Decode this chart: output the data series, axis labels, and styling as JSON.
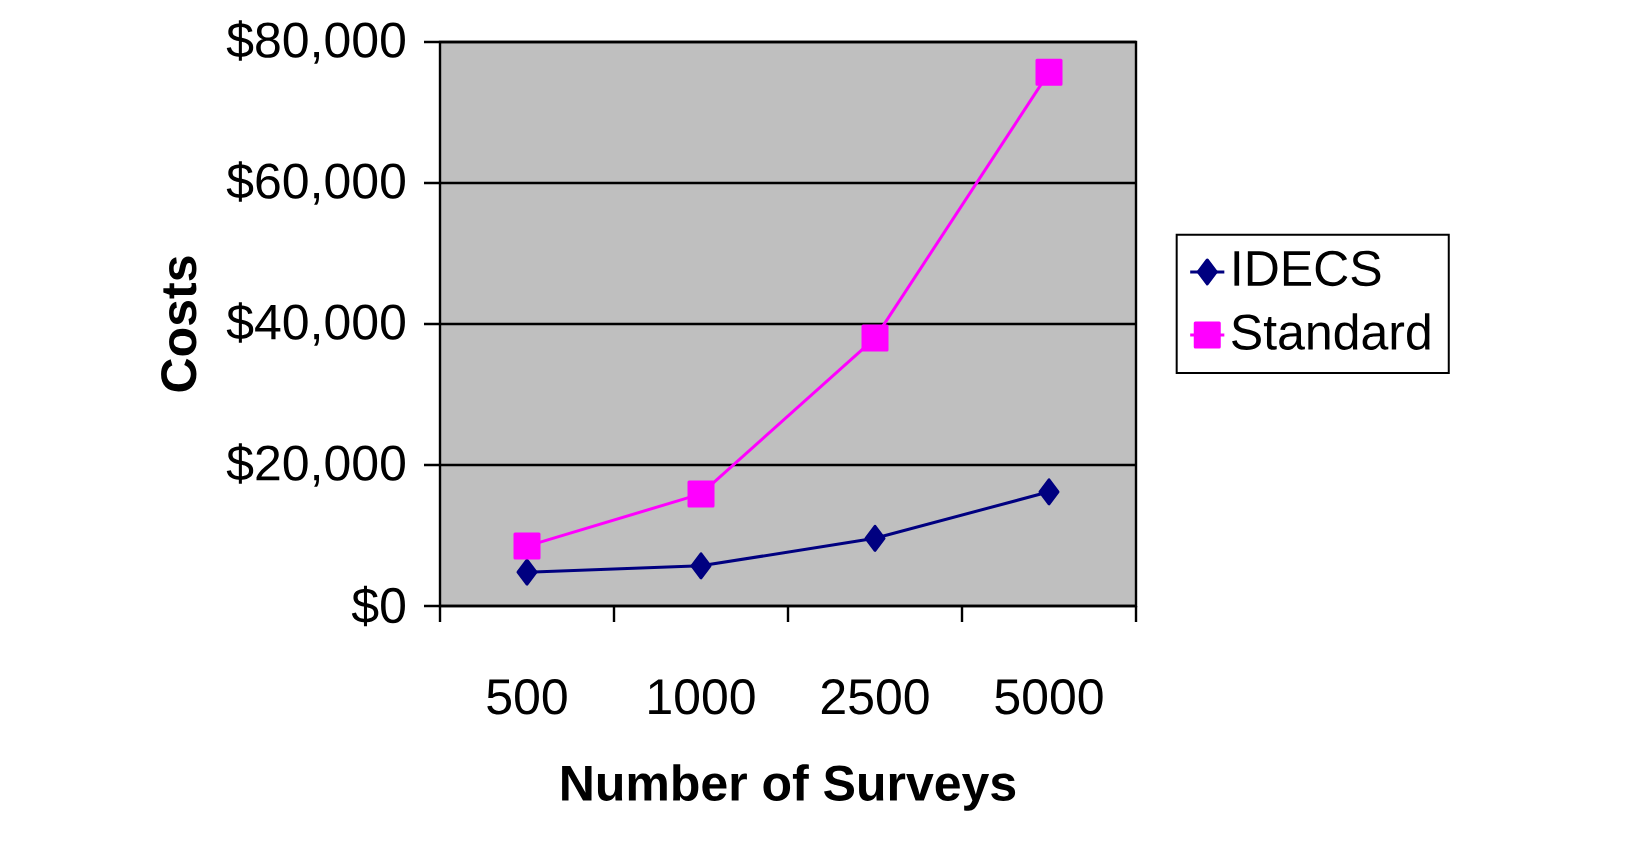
{
  "chart_data": {
    "type": "line",
    "xlabel": "Number of Surveys",
    "ylabel": "Costs",
    "categories": [
      "500",
      "1000",
      "2500",
      "5000"
    ],
    "series": [
      {
        "name": "IDECS",
        "color": "#000080",
        "marker": "diamond",
        "values": [
          4800,
          5700,
          9600,
          16200
        ]
      },
      {
        "name": "Standard",
        "color": "#ff00ff",
        "marker": "square",
        "values": [
          8500,
          15900,
          38000,
          75700
        ]
      }
    ],
    "ylim": [
      0,
      80000
    ],
    "yticks": [
      {
        "value": 0,
        "label": "$0"
      },
      {
        "value": 20000,
        "label": "$20,000"
      },
      {
        "value": 40000,
        "label": "$40,000"
      },
      {
        "value": 60000,
        "label": "$60,000"
      },
      {
        "value": 80000,
        "label": "$80,000"
      }
    ],
    "grid": "y",
    "legend": "right",
    "line_style": "solid"
  }
}
